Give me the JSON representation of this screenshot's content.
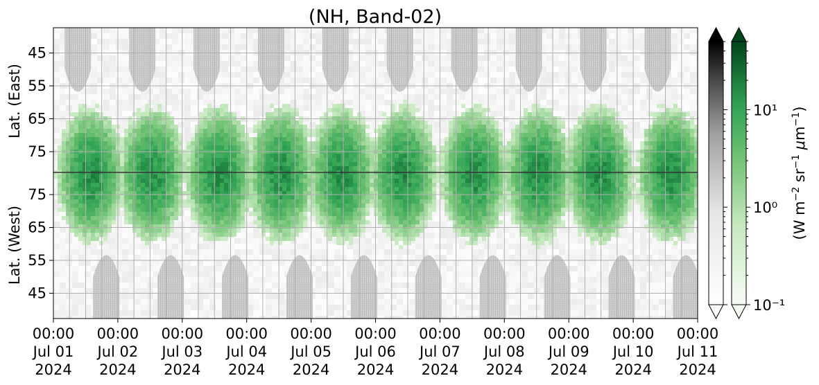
{
  "chart_data": {
    "type": "heatmap",
    "title": "(NH, Band-02)",
    "x_axis": {
      "range": [
        "2024-07-01T00:00",
        "2024-07-11T00:00"
      ],
      "ticks": [
        {
          "time": "00:00",
          "day": "Jul 01",
          "year": "2024"
        },
        {
          "time": "00:00",
          "day": "Jul 02",
          "year": "2024"
        },
        {
          "time": "00:00",
          "day": "Jul 03",
          "year": "2024"
        },
        {
          "time": "00:00",
          "day": "Jul 04",
          "year": "2024"
        },
        {
          "time": "00:00",
          "day": "Jul 05",
          "year": "2024"
        },
        {
          "time": "00:00",
          "day": "Jul 06",
          "year": "2024"
        },
        {
          "time": "00:00",
          "day": "Jul 07",
          "year": "2024"
        },
        {
          "time": "00:00",
          "day": "Jul 08",
          "year": "2024"
        },
        {
          "time": "00:00",
          "day": "Jul 09",
          "year": "2024"
        },
        {
          "time": "00:00",
          "day": "Jul 10",
          "year": "2024"
        },
        {
          "time": "00:00",
          "day": "Jul 11",
          "year": "2024"
        }
      ]
    },
    "y_axis_east": {
      "label": "Lat. (East)",
      "ticks": [
        "45",
        "55",
        "65",
        "75"
      ]
    },
    "y_axis_west": {
      "label": "Lat. (West)",
      "ticks": [
        "75",
        "65",
        "55",
        "45"
      ]
    },
    "colorbar": {
      "label": "(W m$^{-2}$ sr$^{-1}$ $\\mu$m$^{-1}$)",
      "scale": "log",
      "range": [
        0.1,
        50
      ],
      "tick_labels": [
        "10⁻¹",
        "10⁰",
        "10¹"
      ],
      "tick_values": [
        0.1,
        1,
        10
      ],
      "colormaps": [
        "Greys",
        "Greens"
      ],
      "extend": "both"
    },
    "grid": true,
    "colors": {
      "dark_green": "#00441b",
      "mid_green": "#41ab5d",
      "light_green": "#c7e9c0",
      "no_data_grey": "#c0c0c0",
      "background_grey": "#f0f0f0"
    },
    "series": [
      {
        "colormap": "Greens",
        "activity_peaks_day": [
          0.55,
          1.5,
          2.55,
          3.5,
          4.45,
          5.4,
          6.5,
          7.5,
          8.45,
          9.55
        ],
        "typical_peak_value": 15,
        "east_lat_range": [
          60,
          80
        ],
        "west_lat_range": [
          58,
          80
        ]
      }
    ]
  }
}
